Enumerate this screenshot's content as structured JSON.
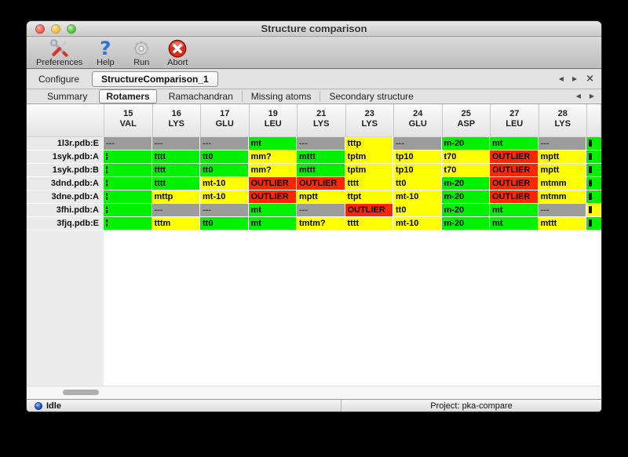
{
  "window": {
    "title": "Structure comparison"
  },
  "toolbar": {
    "items": [
      {
        "label": "Preferences",
        "icon": "tools-icon"
      },
      {
        "label": "Help",
        "icon": "question-mark-icon"
      },
      {
        "label": "Run",
        "icon": "gear-icon"
      },
      {
        "label": "Abort",
        "icon": "stop-icon"
      }
    ]
  },
  "configure": {
    "label": "Configure",
    "value": "StructureComparison_1"
  },
  "nav_icons": {
    "prev": "◀",
    "next": "▶",
    "close": "×"
  },
  "tabs": {
    "active": "Rotamers",
    "items": [
      "Summary",
      "Rotamers",
      "Ramachandran",
      "Missing atoms",
      "Secondary structure"
    ]
  },
  "table": {
    "columns": [
      {
        "num": "15",
        "res": "VAL"
      },
      {
        "num": "16",
        "res": "LYS"
      },
      {
        "num": "17",
        "res": "GLU"
      },
      {
        "num": "19",
        "res": "LEU"
      },
      {
        "num": "21",
        "res": "LYS"
      },
      {
        "num": "23",
        "res": "LYS"
      },
      {
        "num": "24",
        "res": "GLU"
      },
      {
        "num": "25",
        "res": "ASP"
      },
      {
        "num": "27",
        "res": "LEU"
      },
      {
        "num": "28",
        "res": "LYS"
      }
    ],
    "rows": [
      {
        "label": "1l3r.pdb:E",
        "cells": [
          [
            "---",
            "gray"
          ],
          [
            "---",
            "gray"
          ],
          [
            "---",
            "gray"
          ],
          [
            "mt",
            "green"
          ],
          [
            "---",
            "gray"
          ],
          [
            "tttp",
            "yellow"
          ],
          [
            "---",
            "gray"
          ],
          [
            "m-20",
            "green"
          ],
          [
            "mt",
            "green"
          ],
          [
            "---",
            "gray"
          ]
        ],
        "overflow": "green"
      },
      {
        "label": "1syk.pdb:A",
        "cells": [
          [
            "",
            "green",
            "frag"
          ],
          [
            "tttt",
            "green"
          ],
          [
            "tt0",
            "green"
          ],
          [
            "mm?",
            "yellow"
          ],
          [
            "mttt",
            "green"
          ],
          [
            "tptm",
            "yellow"
          ],
          [
            "tp10",
            "yellow"
          ],
          [
            "t70",
            "yellow"
          ],
          [
            "OUTLIER",
            "red"
          ],
          [
            "mptt",
            "yellow"
          ]
        ],
        "overflow": "green"
      },
      {
        "label": "1syk.pdb:B",
        "cells": [
          [
            "",
            "green",
            "frag"
          ],
          [
            "tttt",
            "green"
          ],
          [
            "tt0",
            "green"
          ],
          [
            "mm?",
            "yellow"
          ],
          [
            "mttt",
            "green"
          ],
          [
            "tptm",
            "yellow"
          ],
          [
            "tp10",
            "yellow"
          ],
          [
            "t70",
            "yellow"
          ],
          [
            "OUTLIER",
            "red"
          ],
          [
            "mptt",
            "yellow"
          ]
        ],
        "overflow": "green"
      },
      {
        "label": "3dnd.pdb:A",
        "cells": [
          [
            "",
            "green",
            "frag"
          ],
          [
            "tttt",
            "green"
          ],
          [
            "mt-10",
            "yellow"
          ],
          [
            "OUTLIER",
            "red"
          ],
          [
            "OUTLIER",
            "red"
          ],
          [
            "tttt",
            "yellow"
          ],
          [
            "tt0",
            "yellow"
          ],
          [
            "m-20",
            "green"
          ],
          [
            "OUTLIER",
            "red"
          ],
          [
            "mtmm",
            "yellow"
          ]
        ],
        "overflow": "green"
      },
      {
        "label": "3dne.pdb:A",
        "cells": [
          [
            "",
            "green",
            "frag"
          ],
          [
            "mttp",
            "yellow"
          ],
          [
            "mt-10",
            "yellow"
          ],
          [
            "OUTLIER",
            "red"
          ],
          [
            "mptt",
            "yellow"
          ],
          [
            "ttpt",
            "yellow"
          ],
          [
            "mt-10",
            "yellow"
          ],
          [
            "m-20",
            "green"
          ],
          [
            "OUTLIER",
            "red"
          ],
          [
            "mtmm",
            "yellow"
          ]
        ],
        "overflow": "green"
      },
      {
        "label": "3fhi.pdb:A",
        "cells": [
          [
            "",
            "green",
            "frag"
          ],
          [
            "---",
            "gray"
          ],
          [
            "---",
            "gray"
          ],
          [
            "mt",
            "green"
          ],
          [
            "---",
            "gray"
          ],
          [
            "OUTLIER",
            "red"
          ],
          [
            "tt0",
            "yellow"
          ],
          [
            "m-20",
            "green"
          ],
          [
            "mt",
            "green"
          ],
          [
            "---",
            "gray"
          ]
        ],
        "overflow": "yellow"
      },
      {
        "label": "3fjq.pdb:E",
        "cells": [
          [
            "",
            "green",
            "frag"
          ],
          [
            "tttm",
            "yellow"
          ],
          [
            "tt0",
            "green"
          ],
          [
            "mt",
            "green"
          ],
          [
            "tmtm?",
            "yellow"
          ],
          [
            "tttt",
            "yellow"
          ],
          [
            "mt-10",
            "yellow"
          ],
          [
            "m-20",
            "green"
          ],
          [
            "mt",
            "green"
          ],
          [
            "mttt",
            "yellow"
          ]
        ],
        "overflow": "green"
      }
    ]
  },
  "palette": {
    "green": "#00f000",
    "yellow": "#ffff00",
    "red": "#ff2600",
    "gray": "#9c9c9c"
  },
  "statusbar": {
    "state": "Idle",
    "project": "Project: pka-compare"
  }
}
